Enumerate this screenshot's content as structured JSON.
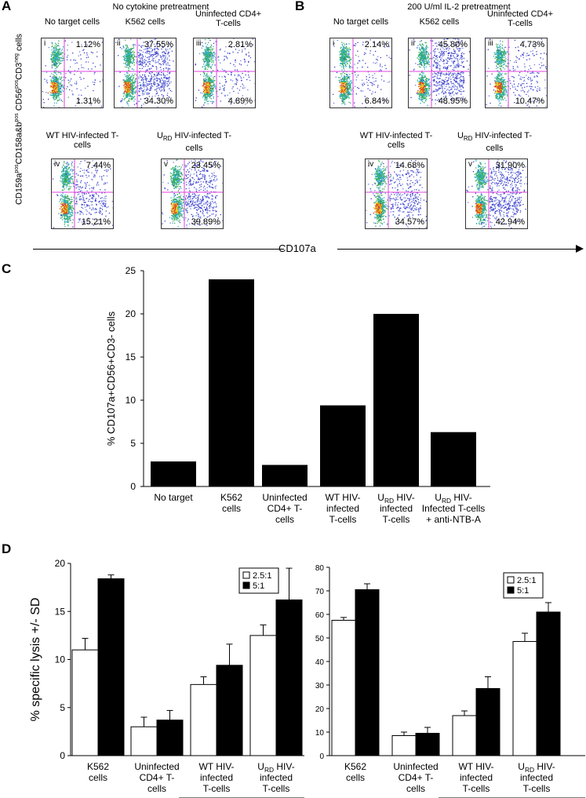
{
  "panel_a": {
    "letter": "A",
    "header": "No cytokine pretreatment",
    "y_axis_label": "CD159a^pos CD158a&b^pos CD56^pos CD3^neg cells",
    "plots": [
      {
        "title": "No target cells",
        "roman": "i",
        "upper": "1.12%",
        "lower": "1.31%"
      },
      {
        "title": "K562 cells",
        "roman": "ii",
        "upper": "37.55%",
        "lower": "34.30%"
      },
      {
        "title": "Uninfected CD4+ T-cells",
        "roman": "iii",
        "upper": "2.81%",
        "lower": "4.89%"
      },
      {
        "title": "WT HIV-infected T-cells",
        "roman": "iv",
        "upper": "7.44%",
        "lower": "15.21%"
      },
      {
        "title": "U_RD HIV-infected T-cells",
        "roman": "v",
        "upper": "23.45%",
        "lower": "39.89%"
      }
    ]
  },
  "panel_b": {
    "letter": "B",
    "header": "200 U/ml IL-2 pretreatment",
    "plots": [
      {
        "title": "No target cells",
        "roman": "i",
        "upper": "2.14%",
        "lower": "6.84%"
      },
      {
        "title": "K562 cells",
        "roman": "ii",
        "upper": "45.80%",
        "lower": "48.95%"
      },
      {
        "title": "Uninfected CD4+ T-cells",
        "roman": "iii",
        "upper": "4.73%",
        "lower": "10.47%"
      },
      {
        "title": "WT HIV-infected T-cells",
        "roman": "iv",
        "upper": "14.68%",
        "lower": "34.57%"
      },
      {
        "title": "U_RD HIV-infected T-cells",
        "roman": "v",
        "upper": "31.90%",
        "lower": "42.94%"
      }
    ]
  },
  "cd107a_label": "CD107a",
  "chart_data": [
    {
      "panel": "C",
      "type": "bar",
      "ylabel": "% CD107a+CD56+CD3- cells",
      "ylim": [
        0,
        25
      ],
      "yticks": [
        0,
        5,
        10,
        15,
        20,
        25
      ],
      "categories": [
        "No target",
        "K562 cells",
        "Uninfected CD4+ T-cells",
        "WT HIV-infected T-cells",
        "U_RD HIV-infected T-cells",
        "U_RD HIV-Infected T-cells + anti-NTB-A"
      ],
      "values": [
        2.9,
        24.0,
        2.5,
        9.4,
        20.0,
        6.3
      ],
      "color": "#000000"
    },
    {
      "panel": "D",
      "type": "bar",
      "ylabel": "% specific lysis +/- SD",
      "ylim": [
        0,
        20
      ],
      "yticks": [
        0,
        5,
        10,
        15,
        20
      ],
      "categories": [
        "K562 cells",
        "Uninfected CD4+ T-cells",
        "WT HIV-infected T-cells",
        "U_RD HIV-infected T-cells"
      ],
      "series": [
        {
          "name": "2.5:1",
          "values": [
            11.0,
            3.0,
            7.4,
            12.5
          ],
          "errors": [
            1.2,
            1.0,
            0.8,
            1.1
          ],
          "color": "#ffffff"
        },
        {
          "name": "5:1",
          "values": [
            18.4,
            3.7,
            9.4,
            16.2
          ],
          "errors": [
            0.4,
            1.0,
            2.2,
            3.3
          ],
          "color": "#000000"
        }
      ],
      "legend": "top-right"
    },
    {
      "panel": "D",
      "type": "bar",
      "ylim": [
        0,
        80
      ],
      "yticks": [
        0,
        10,
        20,
        30,
        40,
        50,
        60,
        70,
        80
      ],
      "categories": [
        "K562 cells",
        "Uninfected CD4+ T-cells",
        "WT HIV-infected T-cells",
        "U_RD HIV-infected T-cells"
      ],
      "series": [
        {
          "name": "2.5:1",
          "values": [
            57.5,
            8.5,
            17.0,
            48.5
          ],
          "errors": [
            1.2,
            1.5,
            2.0,
            3.5
          ],
          "color": "#ffffff"
        },
        {
          "name": "5:1",
          "values": [
            70.5,
            9.5,
            28.5,
            61.0
          ],
          "errors": [
            2.5,
            2.5,
            5.0,
            4.0
          ],
          "color": "#000000"
        }
      ],
      "legend": "top-right"
    }
  ],
  "panel_c_letter": "C",
  "panel_d_letter": "D"
}
